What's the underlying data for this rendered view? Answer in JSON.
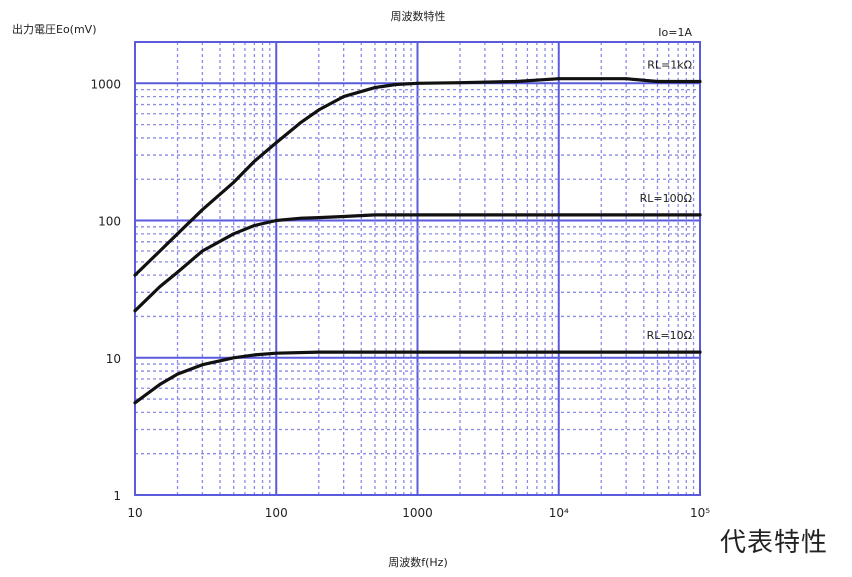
{
  "caption": "代表特性",
  "chart_data": {
    "type": "line",
    "title": "周波数特性",
    "ylabel": "出力電圧Eo(mV)",
    "xlabel": "周波数f(Hz)",
    "condition": "Io=1A",
    "x_scale": "log",
    "y_scale": "log",
    "xlim": [
      10,
      100000
    ],
    "ylim": [
      1,
      2000
    ],
    "x_ticks": [
      {
        "value": 10,
        "label": "10"
      },
      {
        "value": 100,
        "label": "100"
      },
      {
        "value": 1000,
        "label": "1000"
      },
      {
        "value": 10000,
        "label": "10⁴"
      },
      {
        "value": 100000,
        "label": "10⁵"
      }
    ],
    "y_ticks": [
      {
        "value": 1,
        "label": "1"
      },
      {
        "value": 10,
        "label": "10"
      },
      {
        "value": 100,
        "label": "100"
      },
      {
        "value": 1000,
        "label": "1000"
      }
    ],
    "grid": true,
    "series": [
      {
        "name": "RL=1kΩ",
        "x": [
          10,
          15,
          20,
          30,
          50,
          70,
          100,
          150,
          200,
          300,
          500,
          700,
          1000,
          2000,
          5000,
          10000,
          30000,
          50000,
          100000
        ],
        "y": [
          40,
          60,
          80,
          120,
          190,
          270,
          370,
          520,
          640,
          800,
          930,
          980,
          1000,
          1010,
          1030,
          1080,
          1080,
          1030,
          1030
        ]
      },
      {
        "name": "RL=100Ω",
        "x": [
          10,
          15,
          20,
          30,
          50,
          70,
          100,
          150,
          200,
          300,
          500,
          1000,
          5000,
          10000,
          100000
        ],
        "y": [
          22,
          33,
          42,
          60,
          80,
          92,
          100,
          104,
          105,
          107,
          110,
          110,
          110,
          110,
          110
        ]
      },
      {
        "name": "RL=10Ω",
        "x": [
          10,
          12,
          15,
          20,
          30,
          50,
          70,
          100,
          200,
          1000,
          10000,
          100000
        ],
        "y": [
          4.7,
          5.4,
          6.4,
          7.6,
          8.9,
          10.0,
          10.5,
          10.8,
          11,
          11,
          11,
          11
        ]
      }
    ]
  }
}
